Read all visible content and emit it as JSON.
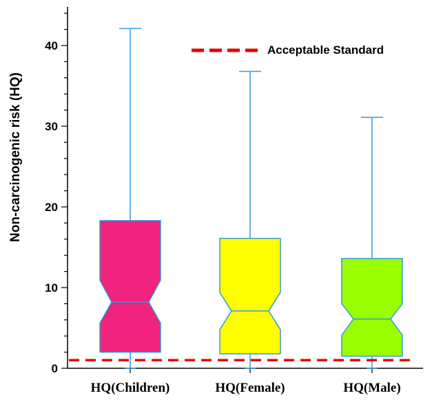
{
  "chart_data": {
    "type": "boxplot",
    "ylabel": "Non-carcinogenic risk (HQ)",
    "ylim": [
      0,
      45
    ],
    "yticks": [
      0,
      10,
      20,
      30,
      40
    ],
    "categories": [
      "HQ(Children)",
      "HQ(Female)",
      "HQ(Male)"
    ],
    "boxes": [
      {
        "category": "HQ(Children)",
        "min": 0,
        "q1": 2.0,
        "median": 8.2,
        "q3": 18.3,
        "max": 42.1,
        "notch_low": 5.6,
        "notch_high": 10.9,
        "color": "#f0237f"
      },
      {
        "category": "HQ(Female)",
        "min": 0,
        "q1": 1.8,
        "median": 7.1,
        "q3": 16.1,
        "max": 36.8,
        "notch_low": 4.8,
        "notch_high": 9.4,
        "color": "#ffff00"
      },
      {
        "category": "HQ(Male)",
        "min": 0,
        "q1": 1.5,
        "median": 6.1,
        "q3": 13.6,
        "max": 31.1,
        "notch_low": 4.1,
        "notch_high": 8.0,
        "color": "#99ff00"
      }
    ],
    "reference_line": {
      "value": 1,
      "label": "Acceptable Standard",
      "color": "#e60000",
      "style": "dashed"
    },
    "legend": {
      "position": "top-right",
      "entries": [
        "Acceptable Standard"
      ]
    },
    "grid": false,
    "outline_color": "#3399dd"
  }
}
